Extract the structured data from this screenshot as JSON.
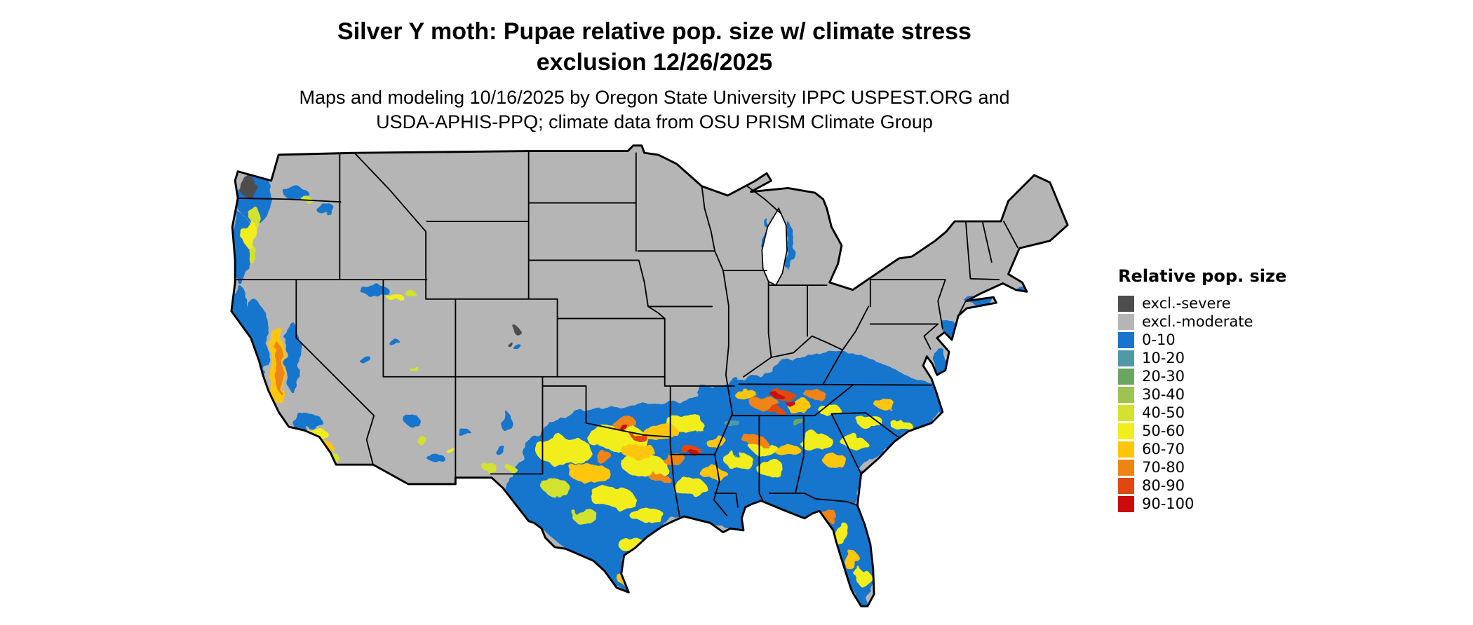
{
  "title": {
    "line1": "Silver Y moth: Pupae relative pop. size w/ climate stress",
    "line2": "exclusion 12/26/2025"
  },
  "subtitle": {
    "line1": "Maps and modeling 10/16/2025 by Oregon State University IPPC USPEST.ORG and",
    "line2": "USDA-APHIS-PPQ; climate data from OSU PRISM Climate Group"
  },
  "legend": {
    "title": "Relative pop. size",
    "items": [
      {
        "label": "excl.-severe",
        "color": "#4d4d4d"
      },
      {
        "label": "excl.-moderate",
        "color": "#b5b5b5"
      },
      {
        "label": "0-10",
        "color": "#1874cd"
      },
      {
        "label": "10-20",
        "color": "#4f98a8"
      },
      {
        "label": "20-30",
        "color": "#6aa662"
      },
      {
        "label": "30-40",
        "color": "#9cc44e"
      },
      {
        "label": "40-50",
        "color": "#d2e22e"
      },
      {
        "label": "50-60",
        "color": "#f2ee1d"
      },
      {
        "label": "60-70",
        "color": "#ffc60b"
      },
      {
        "label": "70-80",
        "color": "#ee8512"
      },
      {
        "label": "80-90",
        "color": "#e0480f"
      },
      {
        "label": "90-100",
        "color": "#cc0a0a"
      }
    ]
  },
  "map": {
    "land_color": "#b5b5b5",
    "border_color": "#000000",
    "water_color": "#ffffff"
  }
}
